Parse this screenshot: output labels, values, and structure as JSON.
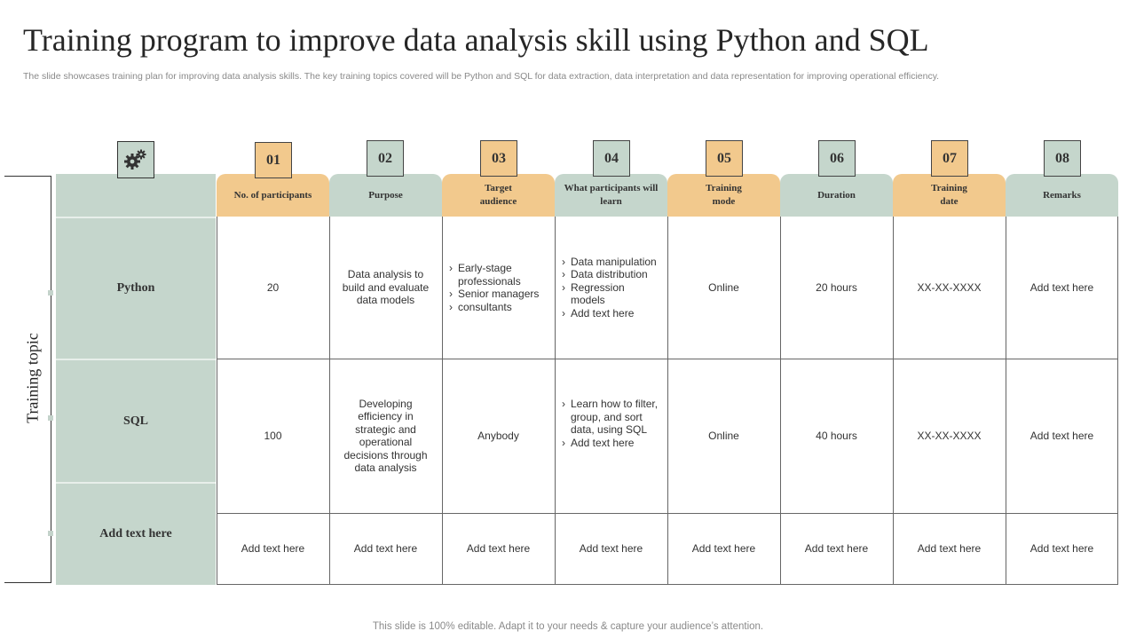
{
  "title": "Training program to improve data analysis skill using Python and SQL",
  "subtitle": "The slide showcases training plan for improving data analysis skills. The key training topics covered will be Python and SQL for data extraction, data interpretation and data representation for improving operational efficiency.",
  "side_label": "Training topic",
  "footer": "This slide is 100% editable. Adapt it to your needs & capture your audience’s attention.",
  "icon": "gears-icon",
  "colors": {
    "orange": "#f2c98d",
    "green": "#c5d6cc"
  },
  "columns": [
    {
      "num": "01",
      "label": "No. of participants"
    },
    {
      "num": "02",
      "label": "Purpose"
    },
    {
      "num": "03",
      "label": "Target audience"
    },
    {
      "num": "04",
      "label": "What participants will learn"
    },
    {
      "num": "05",
      "label": "Training mode"
    },
    {
      "num": "06",
      "label": "Duration"
    },
    {
      "num": "07",
      "label": "Training date"
    },
    {
      "num": "08",
      "label": "Remarks"
    }
  ],
  "rows": [
    {
      "topic": "Python",
      "participants": "20",
      "purpose": "Data analysis to build and evaluate data models",
      "audience": [
        "Early-stage professionals",
        "Senior managers",
        "consultants"
      ],
      "learn": [
        "Data manipulation",
        "Data distribution",
        "Regression models",
        "Add text here"
      ],
      "mode": "Online",
      "duration": "20 hours",
      "date": "XX-XX-XXXX",
      "remarks": "Add text here"
    },
    {
      "topic": "SQL",
      "participants": "100",
      "purpose": "Developing efficiency in strategic and operational decisions through data analysis",
      "audience": "Anybody",
      "learn": [
        "Learn how to filter, group, and sort data, using SQL",
        "Add text here"
      ],
      "mode": "Online",
      "duration": "40 hours",
      "date": "XX-XX-XXXX",
      "remarks": "Add text here"
    },
    {
      "topic": "Add text here",
      "participants": "Add text here",
      "purpose": "Add text here",
      "audience": "Add text here",
      "learn": "Add text here",
      "mode": "Add text here",
      "duration": "Add text here",
      "date": "Add text here",
      "remarks": "Add text here"
    }
  ]
}
